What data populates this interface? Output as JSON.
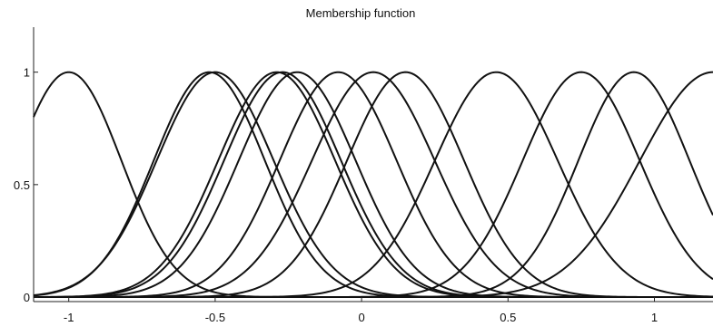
{
  "chart_data": {
    "type": "line",
    "title": "Membership function",
    "xlabel": "",
    "ylabel": "",
    "xlim": [
      -1.12,
      1.2
    ],
    "ylim": [
      -0.02,
      1.2
    ],
    "x_ticks": [
      -1,
      -0.5,
      0,
      0.5,
      1
    ],
    "x_tick_labels": [
      "-1",
      "-0.5",
      "0",
      "0.5",
      "1"
    ],
    "y_ticks": [
      0,
      0.5,
      1
    ],
    "y_tick_labels": [
      "0",
      "0.5",
      "1"
    ],
    "grid": false,
    "curve_shape": "gaussian",
    "series": [
      {
        "center": -1.0,
        "sigma": 0.18
      },
      {
        "center": -0.52,
        "sigma": 0.19
      },
      {
        "center": -0.5,
        "sigma": 0.2
      },
      {
        "center": -0.29,
        "sigma": 0.2
      },
      {
        "center": -0.27,
        "sigma": 0.2
      },
      {
        "center": -0.22,
        "sigma": 0.2
      },
      {
        "center": -0.08,
        "sigma": 0.2
      },
      {
        "center": 0.04,
        "sigma": 0.21
      },
      {
        "center": 0.15,
        "sigma": 0.2
      },
      {
        "center": 0.46,
        "sigma": 0.21
      },
      {
        "center": 0.75,
        "sigma": 0.2
      },
      {
        "center": 0.93,
        "sigma": 0.19
      },
      {
        "center": 1.2,
        "sigma": 0.25
      }
    ]
  }
}
